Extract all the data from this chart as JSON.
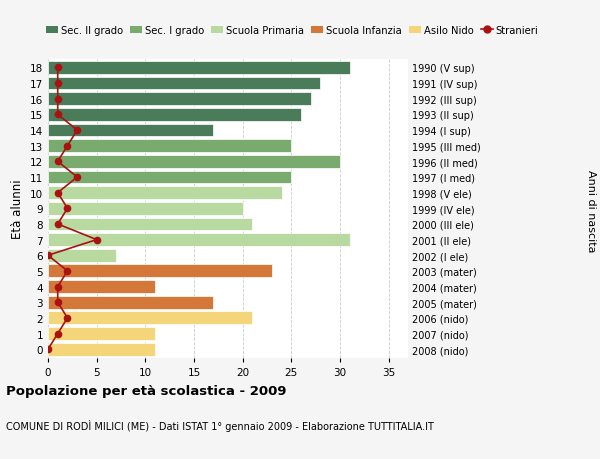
{
  "ages": [
    18,
    17,
    16,
    15,
    14,
    13,
    12,
    11,
    10,
    9,
    8,
    7,
    6,
    5,
    4,
    3,
    2,
    1,
    0
  ],
  "years": [
    "1990 (V sup)",
    "1991 (IV sup)",
    "1992 (III sup)",
    "1993 (II sup)",
    "1994 (I sup)",
    "1995 (III med)",
    "1996 (II med)",
    "1997 (I med)",
    "1998 (V ele)",
    "1999 (IV ele)",
    "2000 (III ele)",
    "2001 (II ele)",
    "2002 (I ele)",
    "2003 (mater)",
    "2004 (mater)",
    "2005 (mater)",
    "2006 (nido)",
    "2007 (nido)",
    "2008 (nido)"
  ],
  "bar_values": [
    31,
    28,
    27,
    26,
    17,
    25,
    30,
    25,
    24,
    20,
    21,
    31,
    7,
    23,
    11,
    17,
    21,
    11,
    11
  ],
  "bar_colors": [
    "#4a7c59",
    "#4a7c59",
    "#4a7c59",
    "#4a7c59",
    "#4a7c59",
    "#7aab6e",
    "#7aab6e",
    "#7aab6e",
    "#b8d9a0",
    "#b8d9a0",
    "#b8d9a0",
    "#b8d9a0",
    "#b8d9a0",
    "#d4783a",
    "#d4783a",
    "#d4783a",
    "#f5d57a",
    "#f5d57a",
    "#f5d57a"
  ],
  "stranieri_values": [
    1,
    1,
    1,
    1,
    3,
    2,
    1,
    3,
    1,
    2,
    1,
    5,
    0,
    2,
    1,
    1,
    2,
    1,
    0
  ],
  "stranieri_color": "#aa1111",
  "title_main": "Popolazione per età scolastica - 2009",
  "title_sub": "COMUNE DI RODÌ MILICI (ME) - Dati ISTAT 1° gennaio 2009 - Elaborazione TUTTITALIA.IT",
  "ylabel": "Età alunni",
  "right_label": "Anni di nascita",
  "xlim": [
    0,
    37
  ],
  "xticks": [
    0,
    5,
    10,
    15,
    20,
    25,
    30,
    35
  ],
  "legend_entries": [
    {
      "label": "Sec. II grado",
      "color": "#4a7c59"
    },
    {
      "label": "Sec. I grado",
      "color": "#7aab6e"
    },
    {
      "label": "Scuola Primaria",
      "color": "#b8d9a0"
    },
    {
      "label": "Scuola Infanzia",
      "color": "#d4783a"
    },
    {
      "label": "Asilo Nido",
      "color": "#f5d57a"
    },
    {
      "label": "Stranieri",
      "color": "#aa1111"
    }
  ],
  "bg_color": "#f5f5f5",
  "plot_bg_color": "#ffffff",
  "grid_color": "#cccccc"
}
